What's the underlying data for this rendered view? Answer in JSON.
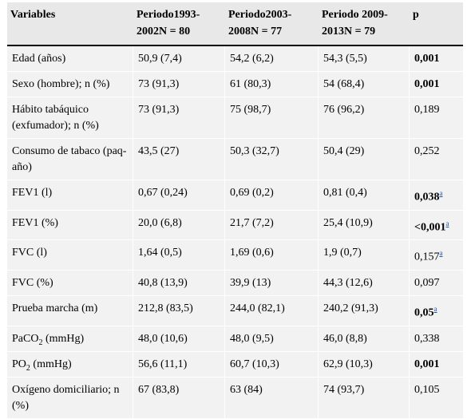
{
  "header": {
    "col0": "Variables",
    "col1": "Periodo1993-2002N = 80",
    "col2": "Periodo2003-2008N = 77",
    "col3": "Periodo 2009-2013N = 79",
    "col4": "p"
  },
  "rows": [
    {
      "var": "Edad (años)",
      "p1": "50,9 (7,4)",
      "p2": "54,2 (6,2)",
      "p3": "54,3 (5,5)",
      "p": "0,001",
      "p_bold": true,
      "note": ""
    },
    {
      "var": "Sexo (hombre); n (%)",
      "p1": "73 (91,3)",
      "p2": "61 (80,3)",
      "p3": "54 (68,4)",
      "p": "0,001",
      "p_bold": true,
      "note": ""
    },
    {
      "var": "Hábito tabáquico (exfumador); n (%)",
      "p1": "73 (91,3)",
      "p2": "75 (98,7)",
      "p3": "76 (96,2)",
      "p": "0,189",
      "p_bold": false,
      "note": ""
    },
    {
      "var": "Consumo de tabaco (paq-año)",
      "p1": "43,5 (27)",
      "p2": "50,3 (32,7)",
      "p3": "50,4 (29)",
      "p": "0,252",
      "p_bold": false,
      "note": ""
    },
    {
      "var": "FEV1 (l)",
      "p1": "0,67 (0,24)",
      "p2": "0,69 (0,2)",
      "p3": "0,81 (0,4)",
      "p": "0,038",
      "p_bold": true,
      "note": "a"
    },
    {
      "var": "FEV1 (%)",
      "p1": "20,0 (6,8)",
      "p2": "21,7 (7,2)",
      "p3": "25,4 (10,9)",
      "p": "<0,001",
      "p_bold": true,
      "note": "a"
    },
    {
      "var": "FVC (l)",
      "p1": "1,64 (0,5)",
      "p2": "1,69 (0,6)",
      "p3": "1,9 (0,7)",
      "p": "0,157",
      "p_bold": false,
      "note": "a"
    },
    {
      "var": "FVC (%)",
      "p1": "40,8 (13,9)",
      "p2": "39,9 (13)",
      "p3": "44,3 (12,6)",
      "p": "0,097",
      "p_bold": false,
      "note": ""
    },
    {
      "var": "Prueba marcha (m)",
      "p1": "212,8 (83,5)",
      "p2": "244,0 (82,1)",
      "p3": "240,2 (91,3)",
      "p": "0,05",
      "p_bold": true,
      "note": "a"
    },
    {
      "var_pre": "PaCO",
      "var_sub": "2",
      "var_post": " (mmHg)",
      "p1": "48,0 (10,6)",
      "p2": "48,0 (9,5)",
      "p3": "46,0 (8,8)",
      "p": "0,338",
      "p_bold": false,
      "note": ""
    },
    {
      "var_pre": "PO",
      "var_sub": "2",
      "var_post": " (mmHg)",
      "p1": "56,6 (11,1)",
      "p2": "60,7 (10,3)",
      "p3": "62,9 (10,3)",
      "p": "0,001",
      "p_bold": true,
      "note": ""
    },
    {
      "var": "Oxígeno domiciliario; n (%)",
      "p1": "67 (83,8)",
      "p2": "63 (84)",
      "p3": "74 (93,7)",
      "p": "0,105",
      "p_bold": false,
      "note": ""
    }
  ]
}
